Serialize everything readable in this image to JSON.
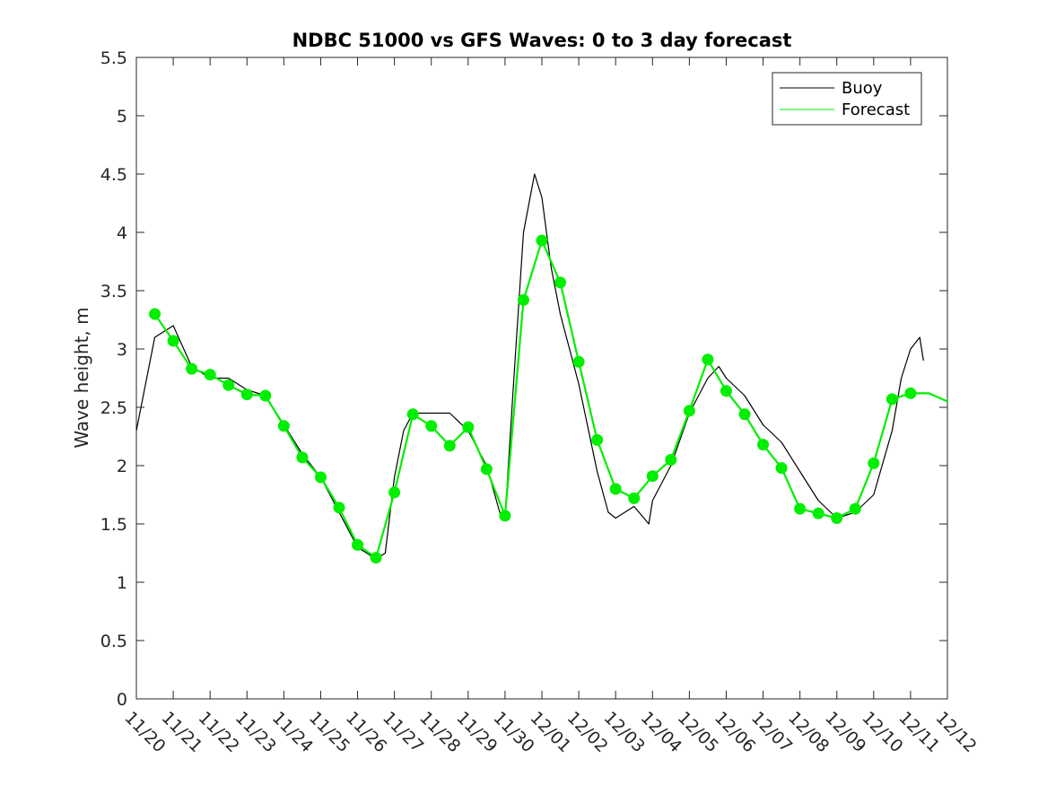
{
  "chart_data": {
    "type": "line",
    "title": "NDBC 51000 vs GFS Waves: 0 to 3 day forecast",
    "xlabel": "",
    "ylabel": "Wave height, m",
    "ylim": [
      0,
      5.5
    ],
    "xlim": [
      0,
      22
    ],
    "grid": false,
    "legend_position": "top-right",
    "xticks": {
      "positions": [
        0,
        1,
        2,
        3,
        4,
        5,
        6,
        7,
        8,
        9,
        10,
        11,
        12,
        13,
        14,
        15,
        16,
        17,
        18,
        19,
        20,
        21,
        22
      ],
      "labels": [
        "11/20",
        "11/21",
        "11/22",
        "11/23",
        "11/24",
        "11/25",
        "11/26",
        "11/27",
        "11/28",
        "11/29",
        "11/30",
        "12/01",
        "12/02",
        "12/03",
        "12/04",
        "12/05",
        "12/06",
        "12/07",
        "12/08",
        "12/09",
        "12/10",
        "12/11",
        "12/12"
      ]
    },
    "yticks": {
      "positions": [
        0,
        0.5,
        1,
        1.5,
        2,
        2.5,
        3,
        3.5,
        4,
        4.5,
        5,
        5.5
      ],
      "labels": [
        "0",
        "0.5",
        "1",
        "1.5",
        "2",
        "2.5",
        "3",
        "3.5",
        "4",
        "4.5",
        "5",
        "5.5"
      ]
    },
    "colors": {
      "buoy": "#000000",
      "forecast": "#00ee00",
      "axis": "#262626"
    },
    "series": [
      {
        "name": "Buoy",
        "color": "#000000",
        "x": [
          0,
          0.5,
          1,
          1.5,
          2,
          2.5,
          3,
          3.5,
          4,
          4.5,
          5,
          5.5,
          6,
          6.25,
          6.5,
          6.75,
          7,
          7.25,
          7.5,
          8,
          8.5,
          9,
          9.5,
          9.9,
          10,
          10.25,
          10.5,
          10.8,
          11,
          11.25,
          11.5,
          12,
          12.5,
          12.8,
          13,
          13.5,
          13.9,
          14,
          14.5,
          15,
          15.5,
          15.8,
          16,
          16.5,
          17,
          17.5,
          18,
          18.5,
          19,
          19.5,
          20,
          20.5,
          20.75,
          21,
          21.25,
          21.35
        ],
        "values": [
          2.3,
          3.1,
          3.2,
          2.85,
          2.75,
          2.75,
          2.65,
          2.6,
          2.35,
          2.1,
          1.9,
          1.6,
          1.3,
          1.25,
          1.2,
          1.25,
          1.9,
          2.3,
          2.45,
          2.45,
          2.45,
          2.3,
          2.0,
          1.55,
          1.55,
          2.8,
          4.0,
          4.5,
          4.3,
          3.7,
          3.3,
          2.7,
          1.95,
          1.6,
          1.55,
          1.65,
          1.5,
          1.7,
          2.0,
          2.45,
          2.75,
          2.85,
          2.75,
          2.6,
          2.35,
          2.2,
          1.95,
          1.7,
          1.55,
          1.6,
          1.75,
          2.3,
          2.75,
          3.0,
          3.1,
          2.9
        ]
      },
      {
        "name": "Forecast",
        "color": "#00ee00",
        "x": [
          0.5,
          1,
          1.5,
          2,
          2.5,
          3,
          3.5,
          4,
          4.5,
          5,
          5.5,
          6,
          6.5,
          7,
          7.5,
          8,
          8.5,
          9,
          9.5,
          10,
          10.5,
          11,
          11.5,
          12,
          12.5,
          13,
          13.5,
          14,
          14.5,
          15,
          15.5,
          16,
          16.5,
          17,
          17.5,
          18,
          18.5,
          19,
          19.5,
          20,
          20.5,
          21,
          21.5,
          22
        ],
        "values": [
          3.3,
          3.07,
          2.83,
          2.78,
          2.69,
          2.61,
          2.6,
          2.34,
          2.07,
          1.9,
          1.64,
          1.32,
          1.21,
          1.77,
          2.44,
          2.34,
          2.17,
          2.33,
          1.97,
          1.57,
          3.42,
          3.93,
          3.57,
          2.89,
          2.22,
          1.8,
          1.72,
          1.91,
          2.05,
          2.47,
          2.91,
          2.64,
          2.44,
          2.18,
          1.98,
          1.63,
          1.59,
          1.55,
          1.63,
          2.02,
          2.57,
          2.62,
          2.62,
          2.55
        ]
      }
    ],
    "forecast_markers": {
      "x": [
        0.5,
        1,
        1.5,
        2,
        2.5,
        3,
        3.5,
        4,
        4.5,
        5,
        5.5,
        6,
        6.5,
        7,
        7.5,
        8,
        8.5,
        9,
        9.5,
        10,
        10.5,
        11,
        11.5,
        12,
        12.5,
        13,
        13.5,
        14,
        14.5,
        15,
        15.5,
        16,
        16.5,
        17,
        17.5,
        18,
        18.5,
        19,
        19.5,
        20,
        20.5,
        21
      ],
      "values": [
        3.3,
        3.07,
        2.83,
        2.78,
        2.69,
        2.61,
        2.6,
        2.34,
        2.07,
        1.9,
        1.64,
        1.32,
        1.21,
        1.77,
        2.44,
        2.34,
        2.17,
        2.33,
        1.97,
        1.57,
        3.42,
        3.93,
        3.57,
        2.89,
        2.22,
        1.8,
        1.72,
        1.91,
        2.05,
        2.47,
        2.91,
        2.64,
        2.44,
        2.18,
        1.98,
        1.63,
        1.59,
        1.55,
        1.63,
        2.02,
        2.57,
        2.62
      ]
    }
  }
}
